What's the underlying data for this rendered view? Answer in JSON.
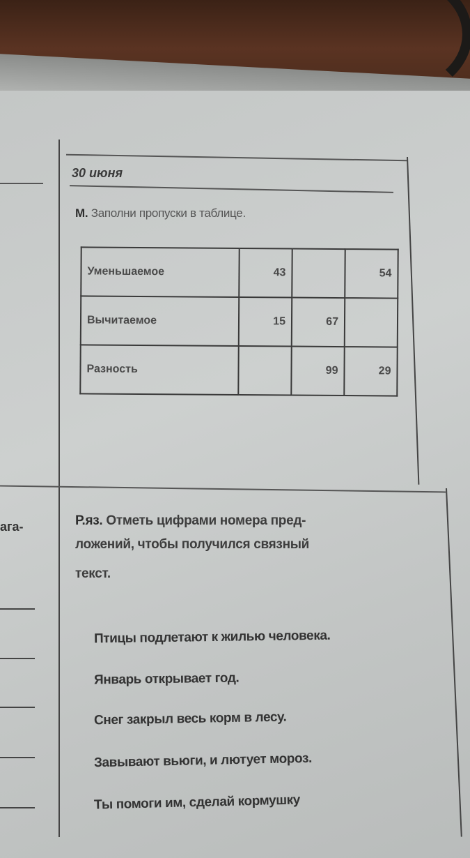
{
  "date": "30 июня",
  "math_task": {
    "prefix": "М.",
    "instruction": "Заполни пропуски в таблице.",
    "table": {
      "rows": [
        {
          "label": "Уменьшаемое",
          "cells": [
            "43",
            "",
            "54"
          ]
        },
        {
          "label": "Вычитаемое",
          "cells": [
            "15",
            "67",
            ""
          ]
        },
        {
          "label": "Разность",
          "cells": [
            "",
            "99",
            "29"
          ]
        }
      ]
    }
  },
  "left_column_fragment": "ага-",
  "russian_task": {
    "prefix": "Р.яз.",
    "instruction_line1": "Отметь цифрами номера пред-",
    "instruction_line2": "ложений, чтобы получился связный",
    "instruction_line3": "текст.",
    "sentences": [
      "Птицы подлетают к жилью человека.",
      "Январь открывает год.",
      "Снег закрыл весь корм в лесу.",
      "Завывают вьюги, и лютует мороз.",
      "Ты помоги им, сделай кормушку"
    ]
  }
}
